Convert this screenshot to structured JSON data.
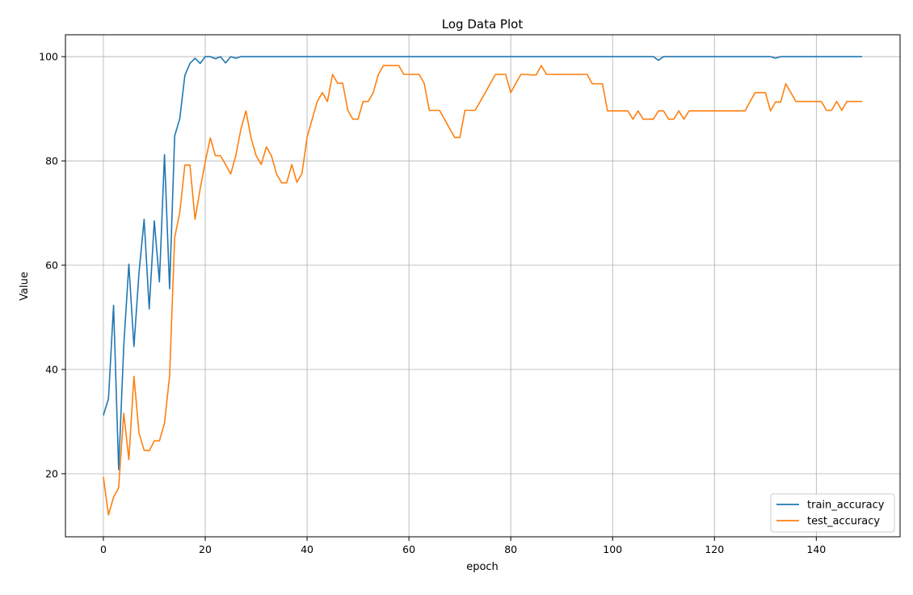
{
  "chart_data": {
    "type": "line",
    "title": "Log Data Plot",
    "xlabel": "epoch",
    "ylabel": "Value",
    "xlim": [
      -7.45,
      156.45
    ],
    "ylim": [
      7.9,
      104.2
    ],
    "xticks": [
      0,
      20,
      40,
      60,
      80,
      100,
      120,
      140
    ],
    "yticks": [
      20,
      40,
      60,
      80,
      100
    ],
    "grid": true,
    "legend_position": "lower-right",
    "x": [
      0,
      1,
      2,
      3,
      4,
      5,
      6,
      7,
      8,
      9,
      10,
      11,
      12,
      13,
      14,
      15,
      16,
      17,
      18,
      19,
      20,
      21,
      22,
      23,
      24,
      25,
      26,
      27,
      28,
      29,
      30,
      31,
      32,
      33,
      34,
      35,
      36,
      37,
      38,
      39,
      40,
      41,
      42,
      43,
      44,
      45,
      46,
      47,
      48,
      49,
      50,
      51,
      52,
      53,
      54,
      55,
      56,
      57,
      58,
      59,
      60,
      61,
      62,
      63,
      64,
      65,
      66,
      67,
      68,
      69,
      70,
      71,
      72,
      73,
      74,
      75,
      76,
      77,
      78,
      79,
      80,
      81,
      82,
      83,
      84,
      85,
      86,
      87,
      88,
      89,
      90,
      91,
      92,
      93,
      94,
      95,
      96,
      97,
      98,
      99,
      100,
      101,
      102,
      103,
      104,
      105,
      106,
      107,
      108,
      109,
      110,
      111,
      112,
      113,
      114,
      115,
      116,
      117,
      118,
      119,
      120,
      121,
      122,
      123,
      124,
      125,
      126,
      127,
      128,
      129,
      130,
      131,
      132,
      133,
      134,
      135,
      136,
      137,
      138,
      139,
      140,
      141,
      142,
      143,
      144,
      145,
      146,
      147,
      148,
      149
    ],
    "series": [
      {
        "name": "train_accuracy",
        "color": "#1f77b4",
        "values": [
          31.2,
          34.4,
          52.3,
          20.8,
          44.5,
          60.2,
          44.4,
          58.6,
          68.8,
          51.6,
          68.5,
          56.8,
          81.2,
          55.5,
          84.8,
          88.1,
          96.4,
          98.7,
          99.7,
          98.7,
          100,
          100,
          99.6,
          100,
          98.8,
          100,
          99.7,
          100,
          100,
          100,
          100,
          100,
          100,
          100,
          100,
          100,
          100,
          100,
          100,
          100,
          100,
          100,
          100,
          100,
          100,
          100,
          100,
          100,
          100,
          100,
          100,
          100,
          100,
          100,
          100,
          100,
          100,
          100,
          100,
          100,
          100,
          100,
          100,
          100,
          100,
          100,
          100,
          100,
          100,
          100,
          100,
          100,
          100,
          100,
          100,
          100,
          100,
          100,
          100,
          100,
          100,
          100,
          100,
          100,
          100,
          100,
          100,
          100,
          100,
          100,
          100,
          100,
          100,
          100,
          100,
          100,
          100,
          100,
          100,
          100,
          100,
          100,
          100,
          100,
          100,
          100,
          100,
          100,
          100,
          99.3,
          100,
          100,
          100,
          100,
          100,
          100,
          100,
          100,
          100,
          100,
          100,
          100,
          100,
          100,
          100,
          100,
          100,
          100,
          100,
          100,
          100,
          100,
          99.7,
          100,
          100,
          100,
          100,
          100,
          100,
          100,
          100,
          100,
          100,
          100,
          100,
          100,
          100,
          100,
          100,
          100
        ]
      },
      {
        "name": "test_accuracy",
        "color": "#ff7f0e",
        "values": [
          19.4,
          12.1,
          15.5,
          17.3,
          31.6,
          22.7,
          38.7,
          27.8,
          24.5,
          24.4,
          26.3,
          26.3,
          29.7,
          38.7,
          65.3,
          70.1,
          79.2,
          79.2,
          68.8,
          74.6,
          79.8,
          84.4,
          81,
          81,
          79.3,
          77.5,
          81,
          86.1,
          89.6,
          84.4,
          81,
          79.3,
          82.7,
          81,
          77.5,
          75.8,
          75.8,
          79.3,
          75.9,
          77.6,
          84.5,
          88,
          91.4,
          93.1,
          91.4,
          96.6,
          94.9,
          94.9,
          89.7,
          88,
          88,
          91.4,
          91.4,
          93.1,
          96.6,
          98.3,
          98.3,
          98.3,
          98.3,
          96.6,
          96.6,
          96.6,
          96.6,
          94.9,
          89.7,
          89.7,
          89.7,
          88,
          86.2,
          84.5,
          84.5,
          89.7,
          89.7,
          89.7,
          91.4,
          93.1,
          94.9,
          96.6,
          96.6,
          96.6,
          93.1,
          94.9,
          96.6,
          96.6,
          96.5,
          96.5,
          98.3,
          96.6,
          96.6,
          96.6,
          96.6,
          96.6,
          96.6,
          96.6,
          96.6,
          96.6,
          94.8,
          94.8,
          94.8,
          89.6,
          89.6,
          89.6,
          89.6,
          89.6,
          88,
          89.6,
          88,
          88,
          88,
          89.6,
          89.6,
          88,
          88,
          89.6,
          88,
          89.6,
          89.6,
          89.6,
          89.6,
          89.6,
          89.6,
          89.6,
          89.6,
          89.6,
          89.6,
          89.6,
          89.6,
          91.4,
          93.1,
          93.1,
          93.1,
          89.6,
          91.3,
          91.3,
          94.8,
          93.1,
          91.4,
          91.4,
          91.4,
          91.4,
          91.4,
          91.4,
          89.7,
          89.7,
          91.4,
          89.7,
          91.4,
          91.4,
          91.4,
          91.4
        ]
      }
    ]
  }
}
